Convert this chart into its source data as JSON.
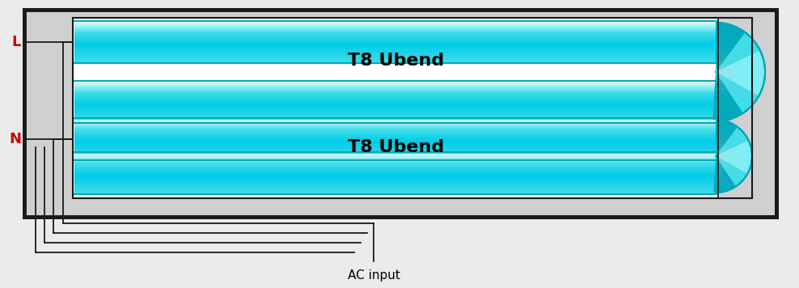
{
  "bg_color": "#ebebeb",
  "tube_color_mid": "#40dce8",
  "tube_color_light": "#80eef5",
  "tube_color_dark": "#00aabb",
  "tube_white_highlight": "#cdfbff",
  "fixture_bg": "#d0d0d0",
  "fixture_border": "#1a1a1a",
  "wire_color": "#1a1a1a",
  "label_L_color": "#cc0000",
  "label_N_color": "#cc0000",
  "label_ac": "AC input",
  "label_tube1": "T8 Ubend",
  "label_tube2": "T8 Ubend",
  "figsize": [
    9.88,
    3.56
  ],
  "dpi": 100
}
